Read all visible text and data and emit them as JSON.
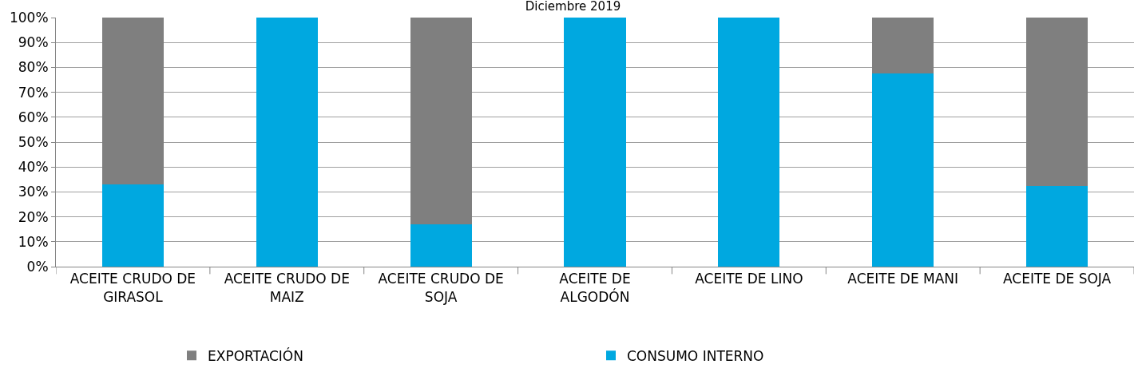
{
  "chart_data": {
    "type": "bar",
    "stacked": true,
    "title": "Diciembre 2019",
    "categories": [
      "ACEITE CRUDO DE GIRASOL",
      "ACEITE CRUDO DE MAIZ",
      "ACEITE CRUDO DE SOJA",
      "ACEITE DE ALGODÓN",
      "ACEITE DE LINO",
      "ACEITE DE MANI",
      "ACEITE DE SOJA"
    ],
    "series": [
      {
        "name": "CONSUMO INTERNO",
        "color": "#00a8e0",
        "values": [
          33,
          100,
          17,
          100,
          100,
          77.5,
          32.5
        ]
      },
      {
        "name": "EXPORTACIÓN",
        "color": "#7f7f7f",
        "values": [
          67,
          0,
          83,
          0,
          0,
          22.5,
          67.5
        ]
      }
    ],
    "ylim": [
      0,
      100
    ],
    "yticks": [
      {
        "value": 0,
        "label": "0%"
      },
      {
        "value": 10,
        "label": "10%"
      },
      {
        "value": 20,
        "label": "20%"
      },
      {
        "value": 30,
        "label": "30%"
      },
      {
        "value": 40,
        "label": "40%"
      },
      {
        "value": 50,
        "label": "50%"
      },
      {
        "value": 60,
        "label": "60%"
      },
      {
        "value": 70,
        "label": "70%"
      },
      {
        "value": 80,
        "label": "80%"
      },
      {
        "value": 90,
        "label": "90%"
      },
      {
        "value": 100,
        "label": "100%"
      }
    ],
    "grid": "y",
    "legend": "bottom"
  }
}
